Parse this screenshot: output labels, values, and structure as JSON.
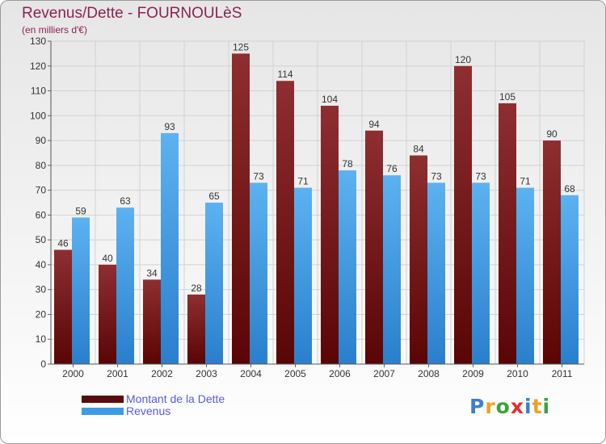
{
  "page": {
    "title": "Revenus/Dette - FOURNOULèS",
    "subtitle": "(en milliers d'€)"
  },
  "chart_data": {
    "type": "bar",
    "title": "Revenus/Dette - FOURNOULèS",
    "subtitle": "(en milliers d'€)",
    "xlabel": "",
    "ylabel": "",
    "categories": [
      "2000",
      "2001",
      "2002",
      "2003",
      "2004",
      "2005",
      "2006",
      "2007",
      "2008",
      "2009",
      "2010",
      "2011"
    ],
    "series": [
      {
        "name": "Montant de la Dette",
        "color": "#7a1f1f",
        "values": [
          46,
          40,
          34,
          28,
          125,
          114,
          104,
          94,
          84,
          120,
          105,
          90
        ]
      },
      {
        "name": "Revenus",
        "color": "#4aa3e8",
        "values": [
          59,
          63,
          93,
          65,
          73,
          71,
          78,
          76,
          73,
          73,
          71,
          68
        ]
      }
    ],
    "ylim": [
      0,
      130
    ],
    "yticks": [
      0,
      10,
      20,
      30,
      40,
      50,
      60,
      70,
      80,
      90,
      100,
      110,
      120,
      130
    ],
    "grid": true,
    "legend": "bottom-left"
  },
  "legend": {
    "items": [
      {
        "label": "Montant de la Dette",
        "color": "#5a0b0b"
      },
      {
        "label": "Revenus",
        "color": "#3d9be6"
      }
    ]
  },
  "logo": {
    "letters": [
      "P",
      "r",
      "o",
      "x",
      "i",
      "t",
      "i"
    ],
    "colors": [
      "#3a7fd0",
      "#f0a020",
      "#3aa43a",
      "#e03030",
      "#3a7fd0",
      "#f0a020",
      "#3aa43a"
    ]
  }
}
